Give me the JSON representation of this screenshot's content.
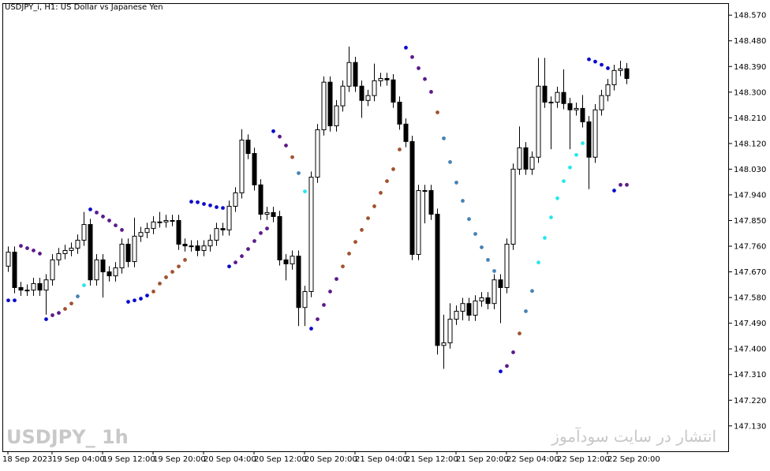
{
  "chart_data": {
    "type": "candlestick",
    "title": "USDJPY_i, H1:  US Dollar vs Japanese Yen",
    "watermark": "USDJPY_ 1h",
    "site_note": "انتشار در سایت سودآموز",
    "categories": [
      "18 Sep 2023",
      null,
      null,
      null,
      null,
      null,
      null,
      "19 Sep 04:00",
      null,
      null,
      null,
      null,
      null,
      null,
      null,
      "19 Sep 12:00",
      null,
      null,
      null,
      null,
      null,
      null,
      null,
      "19 Sep 20:00",
      null,
      null,
      null,
      null,
      null,
      null,
      null,
      "20 Sep 04:00",
      null,
      null,
      null,
      null,
      null,
      null,
      null,
      "20 Sep 12:00",
      null,
      null,
      null,
      null,
      null,
      null,
      null,
      "20 Sep 20:00",
      null,
      null,
      null,
      null,
      null,
      null,
      null,
      "21 Sep 04:00",
      null,
      null,
      null,
      null,
      null,
      null,
      null,
      "21 Sep 12:00",
      null,
      null,
      null,
      null,
      null,
      null,
      null,
      "21 Sep 20:00",
      null,
      null,
      null,
      null,
      null,
      null,
      null,
      "22 Sep 04:00",
      null,
      null,
      null,
      null,
      null,
      null,
      null,
      "22 Sep 12:00",
      null,
      null,
      null,
      null,
      null,
      null,
      null,
      "22 Sep 20:00",
      null,
      null,
      null
    ],
    "open": [
      147.69,
      147.739,
      147.615,
      147.606,
      147.606,
      147.629,
      147.606,
      147.642,
      147.712,
      147.734,
      147.745,
      147.753,
      147.781,
      147.836,
      147.642,
      147.712,
      147.67,
      147.656,
      147.684,
      147.767,
      147.706,
      147.795,
      147.808,
      147.822,
      147.845,
      147.845,
      147.85,
      147.85,
      147.767,
      147.761,
      147.761,
      147.745,
      147.761,
      147.781,
      147.822,
      147.817,
      147.9,
      147.947,
      148.132,
      148.085,
      147.975,
      147.872,
      147.878,
      147.864,
      147.712,
      147.698,
      147.725,
      147.545,
      147.601,
      148.002,
      148.168,
      148.335,
      148.182,
      148.252,
      148.321,
      148.404,
      148.321,
      148.271,
      148.288,
      148.34,
      148.348,
      148.343,
      148.265,
      148.188,
      148.127,
      147.731,
      147.955,
      147.955,
      147.872,
      147.412,
      147.421,
      147.504,
      147.532,
      147.559,
      147.518,
      147.568,
      147.579,
      147.559,
      147.642,
      147.615,
      147.767,
      148.03,
      148.105,
      148.03,
      148.072,
      148.321,
      148.265,
      148.265,
      148.299,
      148.26,
      148.238,
      148.243,
      148.196,
      148.072,
      148.238,
      148.288,
      148.326,
      148.376,
      148.382
    ],
    "high": [
      147.759,
      147.759,
      147.635,
      147.626,
      147.649,
      147.649,
      147.662,
      147.732,
      147.754,
      147.765,
      147.773,
      147.801,
      147.88,
      147.856,
      147.732,
      147.732,
      147.69,
      147.704,
      147.787,
      147.787,
      147.86,
      147.828,
      147.842,
      147.865,
      147.88,
      147.87,
      147.87,
      147.87,
      147.787,
      147.781,
      147.781,
      147.781,
      147.801,
      147.842,
      147.842,
      147.92,
      147.967,
      148.17,
      148.152,
      148.105,
      147.995,
      147.898,
      147.898,
      147.884,
      147.732,
      147.745,
      147.745,
      147.621,
      148.022,
      148.188,
      148.355,
      148.355,
      148.272,
      148.341,
      148.46,
      148.424,
      148.341,
      148.308,
      148.4,
      148.368,
      148.368,
      148.363,
      148.285,
      148.208,
      148.147,
      147.975,
      147.975,
      147.975,
      147.892,
      147.52,
      147.56,
      147.552,
      147.579,
      147.579,
      147.588,
      147.599,
      147.599,
      147.662,
      147.662,
      147.787,
      148.05,
      148.18,
      148.125,
      148.092,
      148.42,
      148.42,
      148.285,
      148.319,
      148.38,
      148.28,
      148.263,
      148.29,
      148.216,
      148.258,
      148.308,
      148.346,
      148.396,
      148.41,
      148.402
    ],
    "low": [
      147.67,
      147.595,
      147.586,
      147.586,
      147.586,
      147.586,
      147.52,
      147.622,
      147.692,
      147.714,
      147.725,
      147.733,
      147.761,
      147.622,
      147.622,
      147.58,
      147.636,
      147.636,
      147.664,
      147.686,
      147.686,
      147.775,
      147.788,
      147.802,
      147.825,
      147.825,
      147.83,
      147.747,
      147.741,
      147.741,
      147.725,
      147.725,
      147.741,
      147.761,
      147.797,
      147.797,
      147.88,
      147.927,
      148.065,
      147.955,
      147.852,
      147.852,
      147.844,
      147.692,
      147.64,
      147.678,
      147.48,
      147.48,
      147.581,
      147.982,
      148.148,
      148.162,
      148.162,
      148.232,
      148.301,
      148.301,
      148.21,
      148.251,
      148.268,
      148.32,
      148.323,
      148.245,
      148.168,
      148.107,
      147.711,
      147.711,
      147.84,
      147.852,
      147.38,
      147.33,
      147.401,
      147.484,
      147.5,
      147.498,
      147.498,
      147.548,
      147.539,
      147.539,
      147.49,
      147.595,
      147.747,
      148.01,
      148.01,
      148.01,
      148.052,
      148.245,
      148.1,
      148.245,
      148.24,
      148.1,
      148.218,
      148.176,
      147.96,
      148.052,
      148.218,
      148.268,
      148.306,
      148.356,
      148.328
    ],
    "close": [
      147.739,
      147.615,
      147.606,
      147.606,
      147.629,
      147.606,
      147.642,
      147.712,
      147.734,
      147.745,
      147.753,
      147.781,
      147.836,
      147.642,
      147.712,
      147.67,
      147.656,
      147.684,
      147.767,
      147.706,
      147.795,
      147.808,
      147.822,
      147.845,
      147.845,
      147.85,
      147.85,
      147.767,
      147.761,
      147.761,
      147.745,
      147.761,
      147.781,
      147.822,
      147.817,
      147.9,
      147.947,
      148.132,
      148.085,
      147.975,
      147.872,
      147.878,
      147.864,
      147.712,
      147.698,
      147.725,
      147.545,
      147.601,
      148.002,
      148.168,
      148.335,
      148.182,
      148.252,
      148.321,
      148.404,
      148.321,
      148.271,
      148.288,
      148.34,
      148.348,
      148.343,
      148.265,
      148.188,
      148.127,
      147.731,
      147.955,
      147.955,
      147.872,
      147.412,
      147.421,
      147.504,
      147.532,
      147.559,
      147.518,
      147.568,
      147.579,
      147.559,
      147.642,
      147.615,
      147.767,
      148.03,
      148.105,
      148.03,
      148.072,
      148.321,
      148.265,
      148.265,
      148.299,
      148.26,
      148.238,
      148.243,
      148.196,
      148.072,
      148.238,
      148.288,
      148.326,
      148.376,
      148.382,
      148.348
    ],
    "bull_color": "#ffffff",
    "bear_color": "#000000",
    "outline_color": "#000000",
    "overlay": {
      "type": "scatter",
      "values": [
        147.57,
        147.57,
        147.761,
        147.753,
        147.745,
        147.734,
        147.504,
        147.518,
        147.526,
        147.54,
        147.559,
        147.584,
        147.623,
        147.889,
        147.878,
        147.864,
        147.85,
        147.833,
        147.817,
        147.565,
        147.57,
        147.576,
        147.587,
        147.601,
        147.629,
        147.651,
        147.67,
        147.689,
        147.712,
        147.916,
        147.914,
        147.908,
        147.903,
        147.897,
        147.894,
        147.689,
        147.703,
        147.725,
        147.75,
        147.778,
        147.806,
        147.822,
        148.163,
        148.144,
        148.113,
        148.072,
        148.016,
        147.952,
        147.471,
        147.504,
        147.554,
        147.601,
        147.645,
        147.689,
        147.734,
        147.775,
        147.817,
        147.858,
        147.9,
        147.947,
        147.988,
        148.03,
        148.099,
        148.456,
        148.423,
        148.384,
        148.346,
        148.301,
        148.229,
        148.138,
        148.055,
        147.983,
        147.919,
        147.855,
        147.803,
        147.756,
        147.712,
        147.673,
        147.321,
        147.34,
        147.388,
        147.454,
        147.532,
        147.603,
        147.703,
        147.789,
        147.861,
        147.928,
        147.988,
        148.036,
        148.08,
        148.121,
        148.415,
        148.407,
        148.396,
        148.384,
        147.955,
        147.975,
        147.975
      ],
      "colors": [
        "#0a0acf",
        "#0a0acf",
        "#5b1a8a",
        "#5b1a8a",
        "#5b1a8a",
        "#5b1a8a",
        "#0a0acf",
        "#5b1a8a",
        "#5b1a8a",
        "#a0522d",
        "#a0522d",
        "#4682b4",
        "#27e6f0",
        "#0a0acf",
        "#5b1a8a",
        "#5b1a8a",
        "#5b1a8a",
        "#5b1a8a",
        "#5b1a8a",
        "#0a0acf",
        "#0a0acf",
        "#0a0acf",
        "#0a0acf",
        "#a0522d",
        "#a0522d",
        "#a0522d",
        "#a0522d",
        "#a0522d",
        "#a0522d",
        "#0a0acf",
        "#0a0acf",
        "#0a0acf",
        "#0a0acf",
        "#0a0acf",
        "#0a0acf",
        "#0a0acf",
        "#5b1a8a",
        "#5b1a8a",
        "#5b1a8a",
        "#5b1a8a",
        "#5b1a8a",
        "#5b1a8a",
        "#0a0acf",
        "#5b1a8a",
        "#5b1a8a",
        "#a0522d",
        "#4682b4",
        "#27e6f0",
        "#0a0acf",
        "#5b1a8a",
        "#5b1a8a",
        "#5b1a8a",
        "#5b1a8a",
        "#a0522d",
        "#a0522d",
        "#a0522d",
        "#a0522d",
        "#a0522d",
        "#a0522d",
        "#a0522d",
        "#a0522d",
        "#a0522d",
        "#a0522d",
        "#0a0acf",
        "#5b1a8a",
        "#5b1a8a",
        "#5b1a8a",
        "#5b1a8a",
        "#a0522d",
        "#4682b4",
        "#4682b4",
        "#4682b4",
        "#4682b4",
        "#4682b4",
        "#4682b4",
        "#4682b4",
        "#4682b4",
        "#4682b4",
        "#0a0acf",
        "#5b1a8a",
        "#5b1a8a",
        "#a0522d",
        "#4682b4",
        "#4682b4",
        "#27e6f0",
        "#27e6f0",
        "#27e6f0",
        "#27e6f0",
        "#27e6f0",
        "#27e6f0",
        "#27e6f0",
        "#27e6f0",
        "#0a0acf",
        "#0a0acf",
        "#0a0acf",
        "#0a0acf",
        "#0a0acf",
        "#5b1a8a",
        "#5b1a8a"
      ]
    },
    "ylim": [
      147.041,
      148.612
    ],
    "yticks": [
      {
        "value": 148.57,
        "label": "148.570"
      },
      {
        "value": 148.48,
        "label": "148.480"
      },
      {
        "value": 148.39,
        "label": "148.390"
      },
      {
        "value": 148.3,
        "label": "148.300"
      },
      {
        "value": 148.21,
        "label": "148.210"
      },
      {
        "value": 148.12,
        "label": "148.120"
      },
      {
        "value": 148.03,
        "label": "148.030"
      },
      {
        "value": 147.94,
        "label": "147.940"
      },
      {
        "value": 147.85,
        "label": "147.850"
      },
      {
        "value": 147.76,
        "label": "147.760"
      },
      {
        "value": 147.67,
        "label": "147.670"
      },
      {
        "value": 147.58,
        "label": "147.580"
      },
      {
        "value": 147.49,
        "label": "147.490"
      },
      {
        "value": 147.4,
        "label": "147.400"
      },
      {
        "value": 147.31,
        "label": "147.310"
      },
      {
        "value": 147.22,
        "label": "147.220"
      },
      {
        "value": 147.13,
        "label": "147.130"
      }
    ],
    "grid": false
  }
}
